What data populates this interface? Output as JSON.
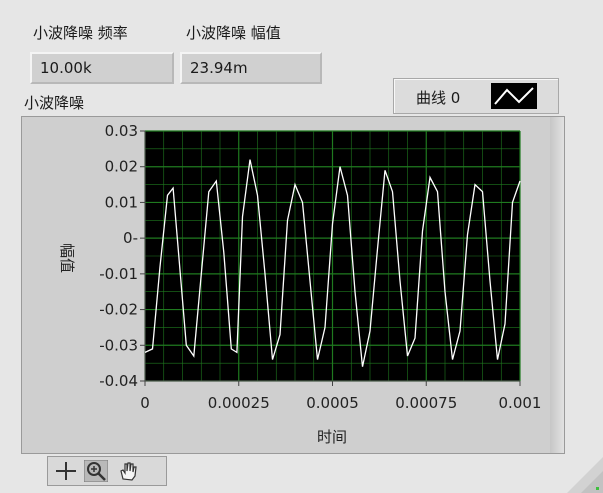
{
  "freq_indicator": {
    "label": "小波降噪 频率",
    "value": "10.00k"
  },
  "amp_indicator": {
    "label": "小波降噪 幅值",
    "value": "23.94m"
  },
  "graph": {
    "title": "小波降噪",
    "legend_label": "曲线 0",
    "plot_background": "#000000",
    "grid_color": "#1f7a1f",
    "trace_color": "#ffffff"
  },
  "chart_data": {
    "type": "line",
    "xlabel": "时间",
    "ylabel": "幅值",
    "xlim": [
      0,
      0.001
    ],
    "ylim": [
      -0.04,
      0.03
    ],
    "x_ticks": [
      "0",
      "0.00025",
      "0.0005",
      "0.00075",
      "0.001"
    ],
    "y_ticks": [
      "0.03",
      "0.02",
      "0.01",
      "0-",
      "-0.01",
      "-0.02",
      "-0.03",
      "-0.04"
    ],
    "series": [
      {
        "x": [
          0,
          2e-05,
          4e-05,
          6e-05,
          7.5e-05,
          9e-05,
          0.00011,
          0.00013,
          0.00015,
          0.00017,
          0.00019,
          0.00021,
          0.00023,
          0.000245,
          0.00026,
          0.00028,
          0.0003,
          0.00032,
          0.00034,
          0.00036,
          0.00038,
          0.0004,
          0.00042,
          0.00044,
          0.00046,
          0.00048,
          0.0005,
          0.00052,
          0.00054,
          0.00056,
          0.00058,
          0.0006,
          0.00062,
          0.00064,
          0.00066,
          0.00068,
          0.0007,
          0.00072,
          0.00074,
          0.00076,
          0.00078,
          0.0008,
          0.00082,
          0.00084,
          0.00086,
          0.00088,
          0.0009,
          0.00092,
          0.00094,
          0.00096,
          0.00098,
          0.001
        ],
        "y": [
          -0.032,
          -0.031,
          -0.008,
          0.012,
          0.014,
          -0.005,
          -0.03,
          -0.033,
          -0.01,
          0.013,
          0.016,
          -0.004,
          -0.031,
          -0.032,
          0.006,
          0.022,
          0.012,
          -0.01,
          -0.034,
          -0.027,
          0.005,
          0.015,
          0.01,
          -0.012,
          -0.034,
          -0.025,
          0.004,
          0.02,
          0.012,
          -0.015,
          -0.036,
          -0.026,
          -0.003,
          0.019,
          0.013,
          -0.012,
          -0.033,
          -0.028,
          0.002,
          0.017,
          0.013,
          -0.015,
          -0.034,
          -0.026,
          0.001,
          0.015,
          0.013,
          -0.012,
          -0.034,
          -0.024,
          0.01,
          0.016
        ]
      }
    ]
  }
}
